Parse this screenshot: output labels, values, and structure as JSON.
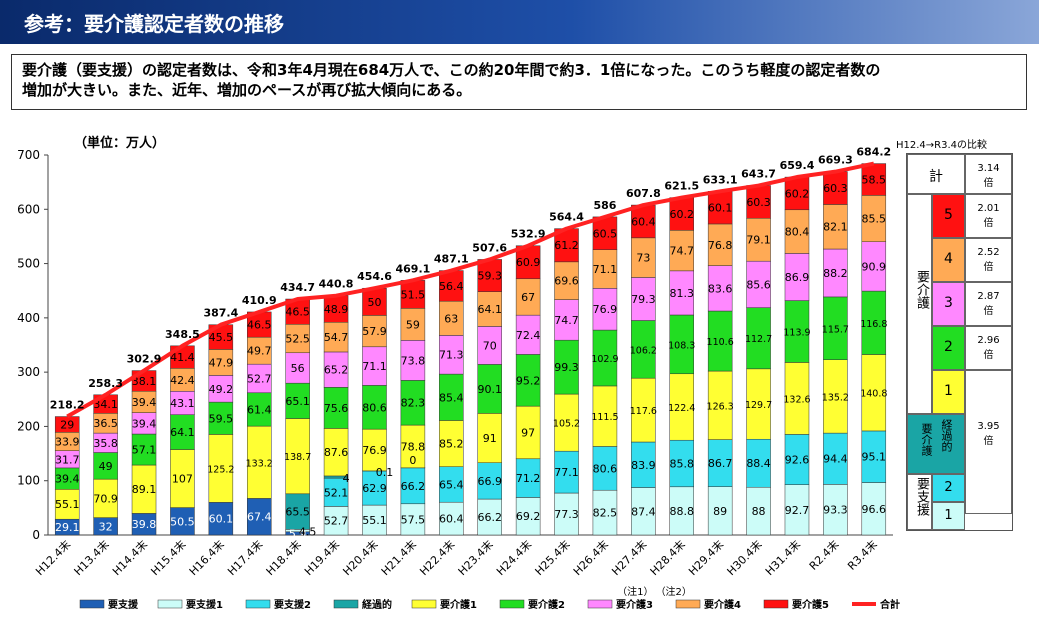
{
  "header": {
    "title": "参考：要介護認定者数の推移"
  },
  "summary": {
    "line1": "要介護（要支援）の認定者数は、令和3年4月現在684万人で、この約20年間で約3．1倍になった。このうち軽度の認定者数の",
    "line2": "増加が大きい。また、近年、増加のペースが再び拡大傾向にある。"
  },
  "chart_data": {
    "type": "bar",
    "stacked": true,
    "unit_label": "（単位：万人）",
    "ylim": [
      0,
      700
    ],
    "yticks": [
      0,
      100,
      200,
      300,
      400,
      500,
      600,
      700
    ],
    "categories": [
      "H12.4末",
      "H13.4末",
      "H14.4末",
      "H15.4末",
      "H16.4末",
      "H17.4末",
      "H18.4末",
      "H19.4末",
      "H20.4末",
      "H21.4末",
      "H22.4末",
      "H23.4末",
      "H24.4末",
      "H25.4末",
      "H26.4末",
      "H27.4末",
      "H28.4末",
      "H29.4末",
      "H30.4末",
      "H31.4末",
      "R2.4末",
      "R3.4末"
    ],
    "notes": [
      {
        "category": "H27.4末",
        "text": "（注1）"
      },
      {
        "category": "H28.4末",
        "text": "（注2）"
      }
    ],
    "series": [
      {
        "name": "要支援",
        "color": "#1f5fb4",
        "values": [
          29.1,
          32,
          39.8,
          50.5,
          60.1,
          67.4,
          5.9,
          null,
          null,
          null,
          null,
          null,
          null,
          null,
          null,
          null,
          null,
          null,
          null,
          null,
          null,
          null
        ]
      },
      {
        "name": "要支援1",
        "color": "#ccfcf8",
        "values": [
          null,
          null,
          null,
          null,
          null,
          null,
          4.5,
          52.7,
          55.1,
          57.5,
          60.4,
          66.2,
          69.2,
          77.3,
          82.5,
          87.4,
          88.8,
          89,
          88,
          92.7,
          93.3,
          96.6
        ]
      },
      {
        "name": "要支援2",
        "color": "#33ddee",
        "values": [
          null,
          null,
          null,
          null,
          null,
          null,
          null,
          52.1,
          62.9,
          66.2,
          65.4,
          66.9,
          71.2,
          77.1,
          80.6,
          83.9,
          85.8,
          86.7,
          88.4,
          92.6,
          94.4,
          95.1
        ]
      },
      {
        "name": "経過的",
        "color": "#1aa5a5",
        "values": [
          null,
          null,
          null,
          null,
          null,
          null,
          65.5,
          4,
          0.1,
          0,
          null,
          null,
          null,
          null,
          null,
          null,
          null,
          null,
          null,
          null,
          null,
          null
        ]
      },
      {
        "name": "要介護1",
        "color": "#ffff33",
        "values": [
          55.1,
          70.9,
          89.1,
          107,
          125.2,
          133.2,
          138.7,
          87.6,
          76.9,
          78.8,
          85.2,
          91,
          97,
          105.2,
          111.5,
          117.6,
          122.4,
          126.3,
          129.7,
          132.6,
          135.2,
          140.8
        ]
      },
      {
        "name": "要介護2",
        "color": "#22dd22",
        "values": [
          39.4,
          49,
          57.1,
          64.1,
          59.5,
          61.4,
          65.1,
          75.6,
          80.6,
          82.3,
          85.4,
          90.1,
          95.2,
          99.3,
          102.9,
          106.2,
          108.3,
          110.6,
          112.7,
          113.9,
          115.7,
          116.8
        ]
      },
      {
        "name": "要介護3",
        "color": "#ff88ff",
        "values": [
          31.7,
          35.8,
          39.4,
          43.1,
          49.2,
          52.7,
          56,
          65.2,
          71.1,
          73.8,
          71.3,
          70,
          72.4,
          74.7,
          76.9,
          79.3,
          81.3,
          83.6,
          85.6,
          86.9,
          88.2,
          90.9
        ]
      },
      {
        "name": "要介護4",
        "color": "#ffaa55",
        "values": [
          33.9,
          36.5,
          39.4,
          42.4,
          47.9,
          49.7,
          52.5,
          54.7,
          57.9,
          59,
          63,
          64.1,
          67,
          69.6,
          71.1,
          73,
          74.7,
          76.8,
          79.1,
          80.4,
          82.1,
          85.5
        ]
      },
      {
        "name": "要介護5",
        "color": "#ff1111",
        "values": [
          29,
          34.1,
          38.1,
          41.4,
          45.5,
          46.5,
          46.5,
          48.9,
          50,
          51.5,
          56.4,
          59.3,
          60.9,
          61.2,
          60.5,
          60.4,
          60.2,
          60.1,
          60.3,
          60.2,
          60.3,
          58.5
        ]
      }
    ],
    "total": {
      "name": "合計",
      "color": "#ff2222",
      "values": [
        218.2,
        258.3,
        302.9,
        348.5,
        387.4,
        410.9,
        434.7,
        440.8,
        454.6,
        469.1,
        487.1,
        507.6,
        532.9,
        564.4,
        586,
        607.8,
        621.5,
        633.1,
        643.7,
        659.4,
        669.3,
        684.2
      ]
    }
  },
  "comparison": {
    "title": "H12.4→R3.4の比較",
    "total_label": "計",
    "total_value": "3.14",
    "unit": "倍",
    "group_care": "要介護",
    "group_transitional": "経過的",
    "group_care_short": "要介護",
    "group_support": "要支援",
    "rows": [
      {
        "level": "5",
        "value": "2.01",
        "color": "#ff1111"
      },
      {
        "level": "4",
        "value": "2.52",
        "color": "#ffaa55"
      },
      {
        "level": "3",
        "value": "2.87",
        "color": "#ff88ff"
      },
      {
        "level": "2",
        "value": "2.96",
        "color": "#22dd22"
      },
      {
        "level": "1",
        "value": "",
        "color": "#ffff33"
      }
    ],
    "combined_value": "3.95",
    "support_rows": [
      {
        "level": "2",
        "color": "#33ddee"
      },
      {
        "level": "1",
        "color": "#ccfcf8"
      }
    ]
  }
}
